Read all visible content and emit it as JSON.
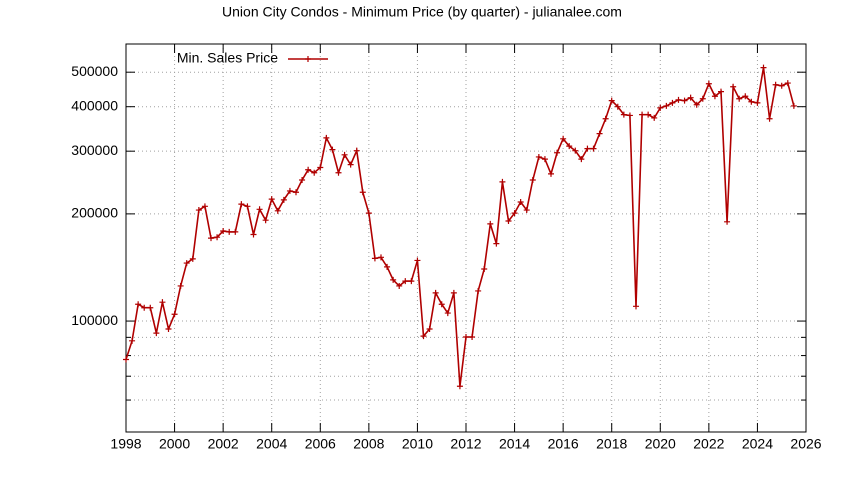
{
  "chart_data": {
    "type": "line",
    "title": "Union City Condos - Minimum Price (by quarter) - julianalee.com",
    "x": [
      1998,
      1998.25,
      1998.5,
      1998.75,
      1999,
      1999.25,
      1999.5,
      1999.75,
      2000,
      2000.25,
      2000.5,
      2000.75,
      2001,
      2001.25,
      2001.5,
      2001.75,
      2002,
      2002.25,
      2002.5,
      2002.75,
      2003,
      2003.25,
      2003.5,
      2003.75,
      2004,
      2004.25,
      2004.5,
      2004.75,
      2005,
      2005.25,
      2005.5,
      2005.75,
      2006,
      2006.25,
      2006.5,
      2006.75,
      2007,
      2007.25,
      2007.5,
      2007.75,
      2008,
      2008.25,
      2008.5,
      2008.75,
      2009,
      2009.25,
      2009.5,
      2009.75,
      2010,
      2010.25,
      2010.5,
      2010.75,
      2011,
      2011.25,
      2011.5,
      2011.75,
      2012,
      2012.25,
      2012.5,
      2012.75,
      2013,
      2013.25,
      2013.5,
      2013.75,
      2014,
      2014.25,
      2014.5,
      2014.75,
      2015,
      2015.25,
      2015.5,
      2015.75,
      2016,
      2016.25,
      2016.5,
      2016.75,
      2017,
      2017.25,
      2017.5,
      2017.75,
      2018,
      2018.25,
      2018.5,
      2018.75,
      2019,
      2019.25,
      2019.5,
      2019.75,
      2020,
      2020.25,
      2020.5,
      2020.75,
      2021,
      2021.25,
      2021.5,
      2021.75,
      2022,
      2022.25,
      2022.5,
      2022.75,
      2023,
      2023.25,
      2023.5,
      2023.75,
      2024,
      2024.25,
      2024.5,
      2024.75,
      2025,
      2025.25,
      2025.5
    ],
    "series": [
      {
        "name": "Min. Sales Price",
        "color": "#b00000",
        "values": [
          78000,
          88000,
          111500,
          109000,
          109000,
          92500,
          113000,
          95000,
          104500,
          125500,
          145500,
          149500,
          205000,
          210000,
          171000,
          172000,
          179000,
          178000,
          178000,
          213000,
          210000,
          175000,
          206000,
          192000,
          220000,
          204000,
          219000,
          232000,
          230000,
          249000,
          266000,
          261000,
          270000,
          327000,
          303000,
          261000,
          293000,
          275000,
          301000,
          230000,
          201000,
          150000,
          151000,
          142000,
          130500,
          125500,
          129500,
          129500,
          148000,
          90700,
          95000,
          120000,
          111500,
          105300,
          120000,
          65600,
          90200,
          90200,
          121500,
          140000,
          187500,
          165000,
          246000,
          191000,
          201000,
          216000,
          205000,
          249000,
          289000,
          285000,
          259000,
          297000,
          325000,
          310000,
          301000,
          285000,
          305000,
          305000,
          336000,
          370000,
          416000,
          400000,
          380000,
          378000,
          110000,
          380000,
          380000,
          372000,
          397000,
          402000,
          410000,
          418000,
          416000,
          424000,
          405000,
          421000,
          464000,
          428000,
          441000,
          190000,
          455000,
          421000,
          428000,
          413000,
          410000,
          515000,
          370000,
          461000,
          458000,
          466000,
          402000
        ]
      }
    ],
    "xlim": [
      1998,
      2026
    ],
    "xticks": [
      1998,
      2000,
      2002,
      2004,
      2006,
      2008,
      2010,
      2012,
      2014,
      2016,
      2018,
      2020,
      2022,
      2024,
      2026
    ],
    "ylim": [
      48800,
      600000
    ],
    "y_log": true,
    "yticks": [
      100000,
      200000,
      300000,
      400000,
      500000
    ],
    "y_minor_ticks": [
      60000,
      70000,
      80000,
      90000
    ],
    "grid": true,
    "legend": "top-left"
  }
}
